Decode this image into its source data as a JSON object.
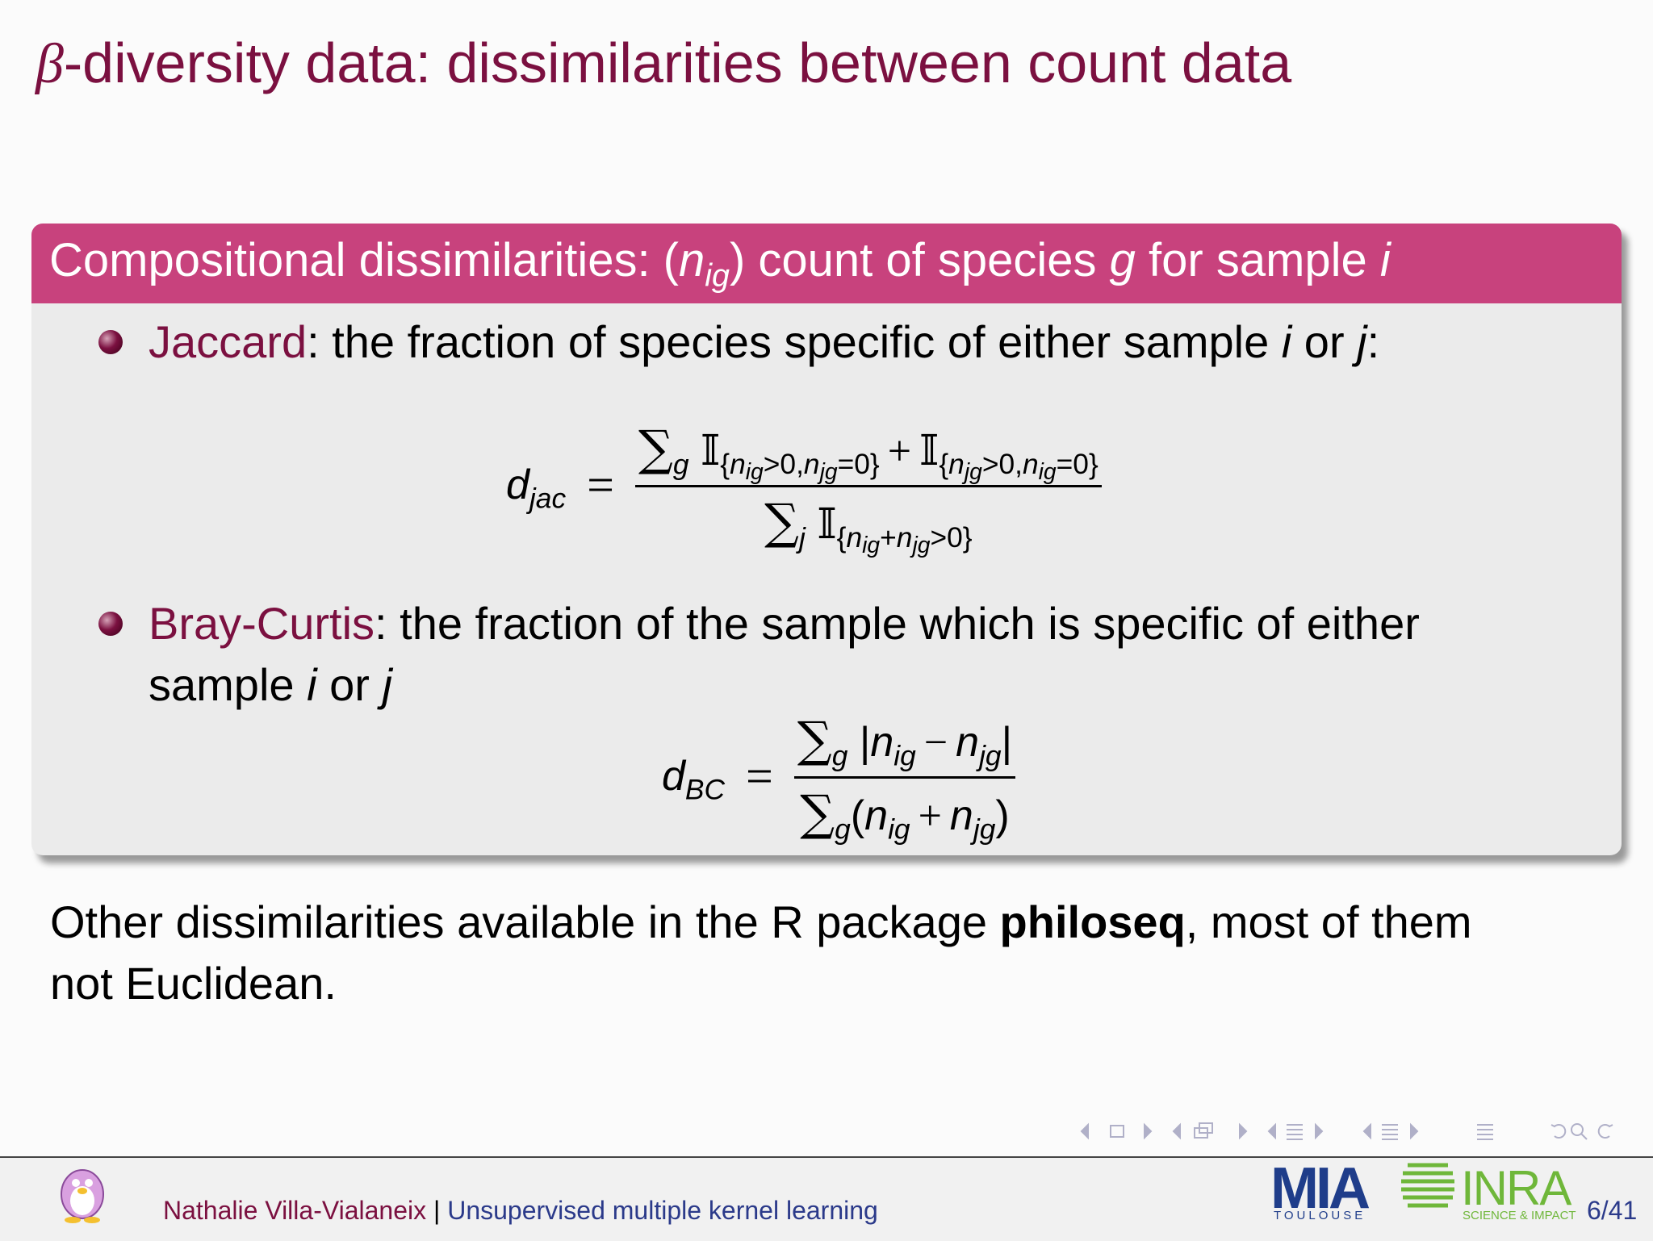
{
  "title": {
    "beta": "β",
    "rest": "-diversity data: dissimilarities between count data"
  },
  "block": {
    "header": [
      "Compositional dissimilarities: (",
      "n",
      "ig",
      ") count of species ",
      "g",
      " for sample ",
      "i"
    ],
    "items": [
      [
        "Jaccard",
        ": the fraction of species specific of either sample ",
        "i",
        " or ",
        "j",
        ":"
      ],
      [
        "Bray-Curtis",
        ": the fraction of the sample which is specific of either",
        "sample ",
        "i",
        " or ",
        "j"
      ]
    ]
  },
  "formulas": [
    {
      "lhs": [
        "d",
        "jac",
        "="
      ],
      "num": [
        "∑",
        "g",
        "𝕀",
        "{",
        "n",
        "ig",
        ">0,",
        "n",
        "jg",
        "=0}",
        "+",
        "𝕀",
        "{",
        "n",
        "jg",
        ">0,",
        "n",
        "ig",
        "=0}"
      ],
      "den": [
        "∑",
        "j",
        "𝕀",
        "{",
        "n",
        "ig",
        "+",
        "n",
        "jg",
        ">0}"
      ]
    },
    {
      "lhs": [
        "d",
        "BC",
        "="
      ],
      "num": [
        "∑",
        "g",
        "|",
        "n",
        "ig",
        "−",
        "n",
        "jg",
        "|"
      ],
      "den": [
        "∑",
        "g",
        "(",
        "n",
        "ig",
        "+",
        "n",
        "jg",
        ")"
      ]
    }
  ],
  "note": [
    "Other dissimilarities available in the R package ",
    "philoseq",
    ", most of them",
    "not Euclidean."
  ],
  "footer": {
    "author": "Nathalie Villa-Vialaneix",
    "sep": " | ",
    "talk": "Unsupervised multiple kernel learning",
    "page": "6/41",
    "logo_mia": "MIA",
    "logo_mia_sub": "TOULOUSE",
    "logo_inra": "INRA",
    "logo_inra_sub": "SCIENCE & IMPACT"
  }
}
